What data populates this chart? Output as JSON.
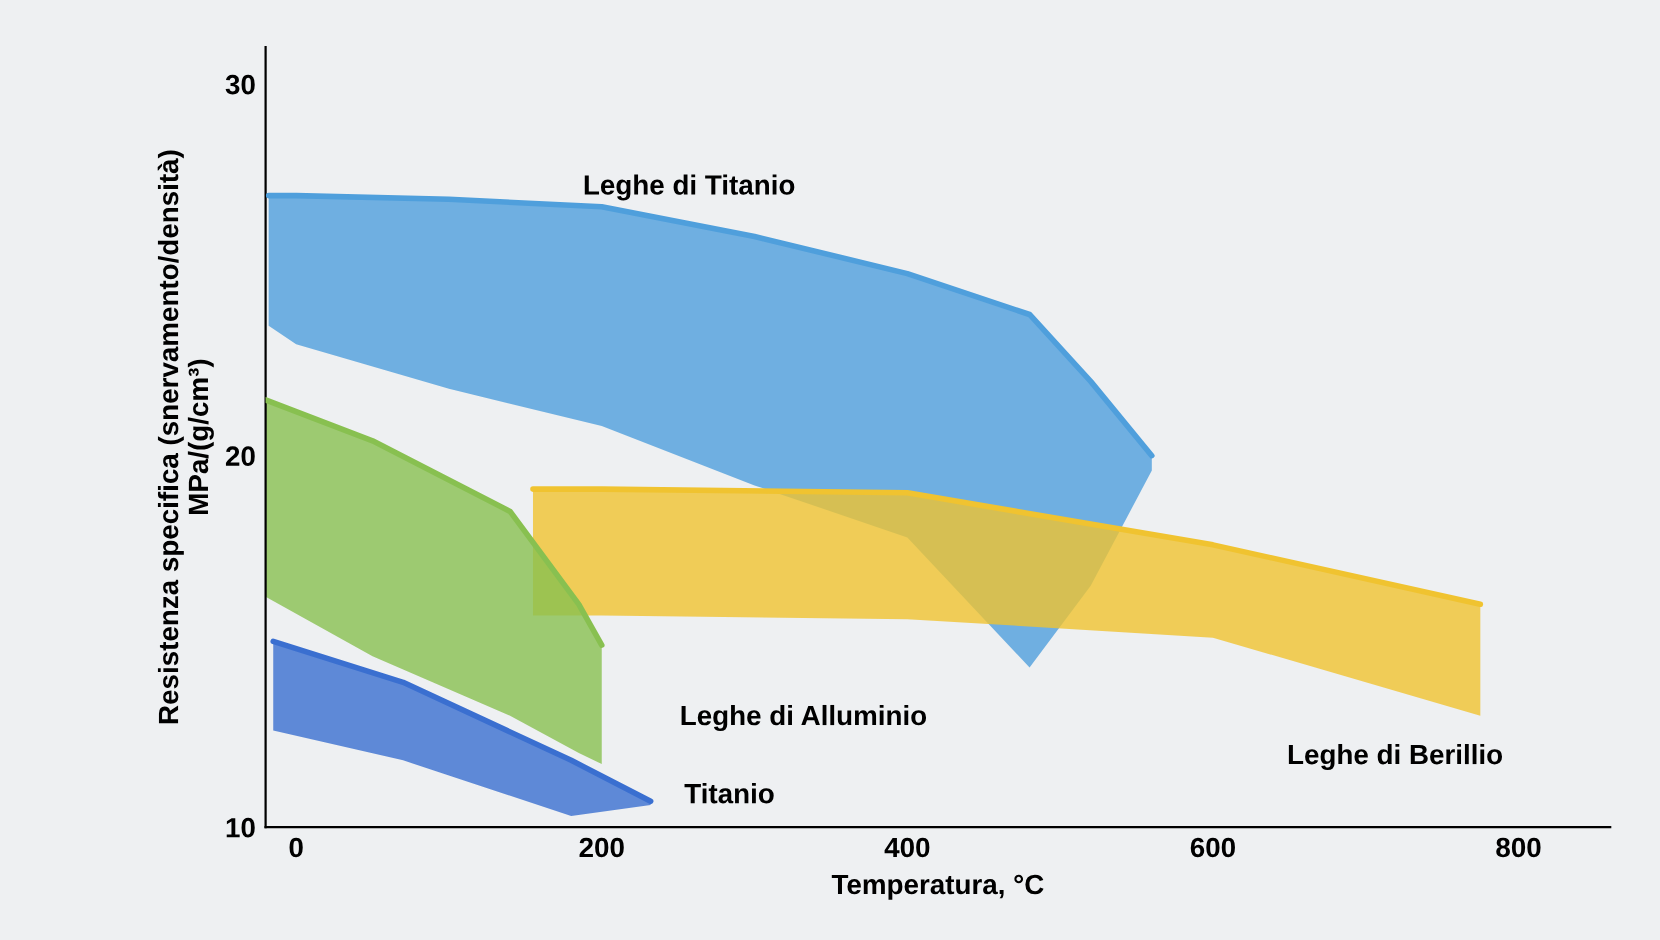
{
  "chart_data": {
    "type": "line",
    "xlabel": "Temperatura, °C",
    "ylabel": "Resistenza specifica (snervamento/densità)\nMPa/(g/cm³)",
    "xlim": [
      -20,
      860
    ],
    "ylim": [
      10,
      31
    ],
    "xticks": [
      0,
      200,
      400,
      600,
      800
    ],
    "yticks": [
      10,
      20,
      30
    ],
    "grid": false,
    "legend": false,
    "series": [
      {
        "color": "#4f9fdc",
        "x": [
          -18,
          0,
          100,
          200,
          300,
          400,
          480,
          520,
          560
        ],
        "values": [
          27,
          27,
          26.9,
          26.7,
          25.9,
          24.9,
          23.8,
          22,
          20
        ],
        "upper": [
          27,
          27,
          26.9,
          26.7,
          25.9,
          24.9,
          23.8,
          22,
          20
        ],
        "lower": [
          23.5,
          23,
          21.8,
          20.8,
          19.2,
          17.8,
          14.3,
          16.5,
          19.6
        ]
      },
      {
        "color": "#f0c330",
        "x": [
          155,
          200,
          400,
          600,
          775
        ],
        "values": [
          19.1,
          19.1,
          19,
          17.6,
          16
        ],
        "upper": [
          19.1,
          19.1,
          19,
          17.6,
          16
        ],
        "lower": [
          15.7,
          15.7,
          15.6,
          15.1,
          13
        ]
      },
      {
        "color": "#88c050",
        "x": [
          -20,
          50,
          140,
          185,
          200
        ],
        "values": [
          21.5,
          20.4,
          18.5,
          16,
          14.9
        ],
        "upper": [
          21.5,
          20.4,
          18.5,
          16,
          14.9
        ],
        "lower": [
          16.2,
          14.6,
          13,
          12,
          11.7
        ]
      },
      {
        "color": "#3a6fd0",
        "x": [
          -15,
          70,
          180,
          232
        ],
        "values": [
          15,
          13.9,
          11.8,
          10.7
        ],
        "upper": [
          15,
          13.9,
          11.8,
          10.7
        ],
        "lower": [
          12.6,
          11.8,
          10.3,
          10.6
        ]
      }
    ],
    "annotations": [
      "Leghe di Titanio",
      "Leghe di Alluminio",
      "Titanio",
      "Leghe di Berillio"
    ]
  }
}
